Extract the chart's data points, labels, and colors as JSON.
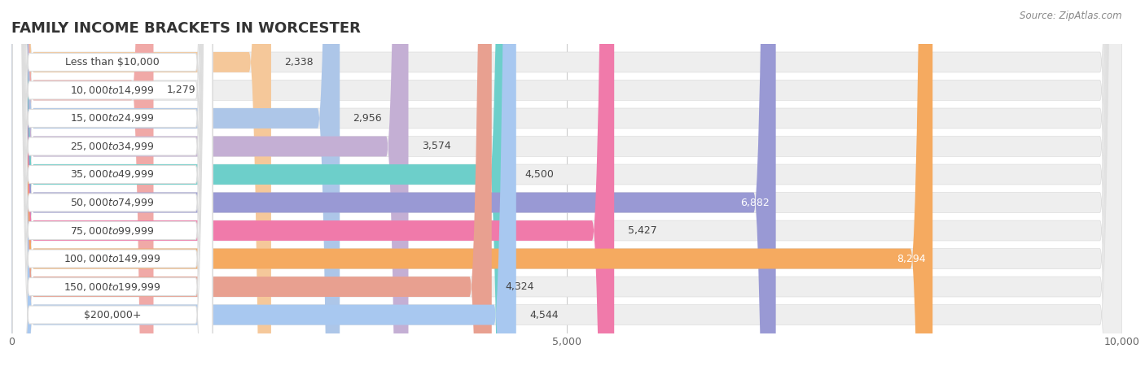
{
  "title": "FAMILY INCOME BRACKETS IN WORCESTER",
  "source": "Source: ZipAtlas.com",
  "categories": [
    "Less than $10,000",
    "$10,000 to $14,999",
    "$15,000 to $24,999",
    "$25,000 to $34,999",
    "$35,000 to $49,999",
    "$50,000 to $74,999",
    "$75,000 to $99,999",
    "$100,000 to $149,999",
    "$150,000 to $199,999",
    "$200,000+"
  ],
  "values": [
    2338,
    1279,
    2956,
    3574,
    4500,
    6882,
    5427,
    8294,
    4324,
    4544
  ],
  "colors": [
    "#f5c89a",
    "#f0a9a7",
    "#adc6e8",
    "#c4afd4",
    "#6dcfca",
    "#9999d4",
    "#f07aaa",
    "#f5aa60",
    "#e8a090",
    "#a8c8f0"
  ],
  "xlim": [
    0,
    10000
  ],
  "xticks": [
    0,
    5000,
    10000
  ],
  "xticklabels": [
    "0",
    "5,000",
    "10,000"
  ],
  "bar_height": 0.72,
  "background_color": "#ffffff",
  "bar_bg_color": "#eeeeee",
  "label_fontsize": 9.0,
  "value_fontsize": 9.0,
  "title_fontsize": 13,
  "high_value_threshold": 6500
}
